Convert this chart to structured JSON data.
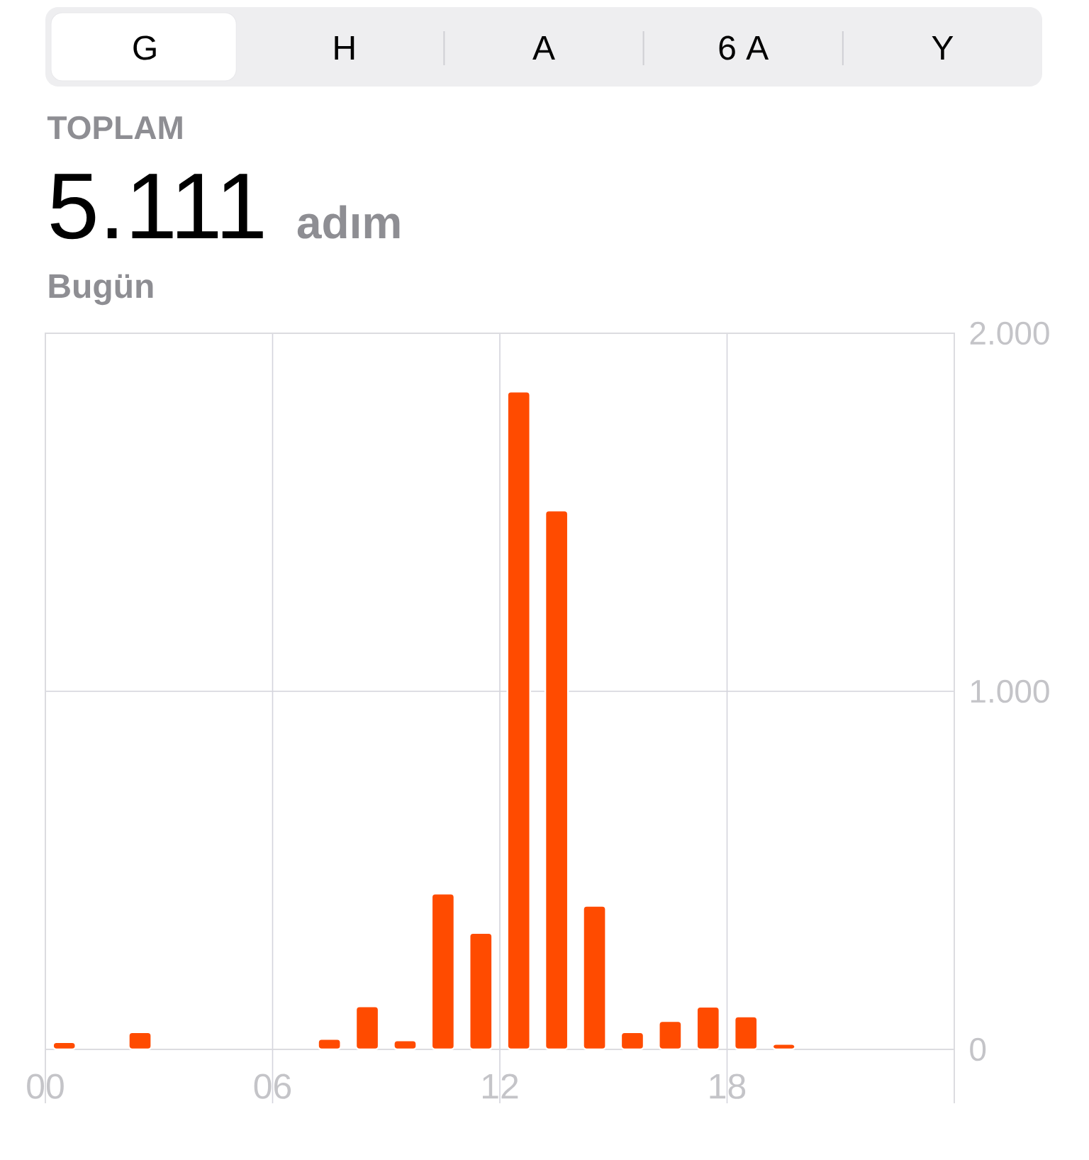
{
  "chart_data": {
    "type": "bar",
    "title": "5.111",
    "subtitle": "Bugün",
    "annotations": [
      "G",
      "H",
      "A",
      "6 A",
      "Y",
      "TOPLAM",
      "adım"
    ],
    "x": [
      0.5,
      2.5,
      7.5,
      8.5,
      9.5,
      10.5,
      11.5,
      12.5,
      13.5,
      14.5,
      15.5,
      16.5,
      17.5,
      18.5,
      19.5
    ],
    "values": [
      20,
      48,
      29,
      120,
      25,
      435,
      325,
      1837,
      1505,
      401,
      48,
      79,
      119,
      92,
      15
    ],
    "color": "#ff4b00",
    "xlim": [
      0,
      24
    ],
    "xticks": [
      {
        "value": 0,
        "label": "00"
      },
      {
        "value": 6,
        "label": "06"
      },
      12,
      18
    ],
    "ylim": [
      0,
      2000
    ],
    "yticks": [
      0,
      {
        "value": 1000,
        "label": "1.000"
      },
      {
        "value": 2000,
        "label": "2.000"
      }
    ],
    "grid": true
  }
}
